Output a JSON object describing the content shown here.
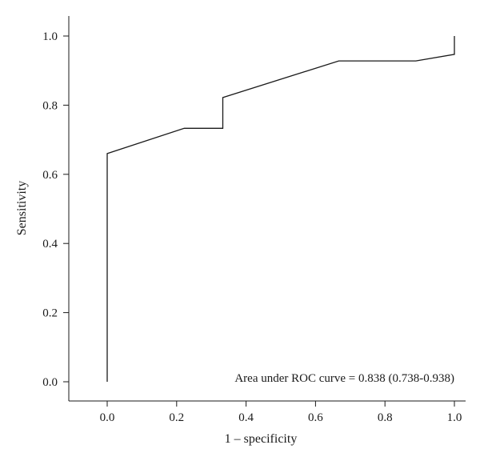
{
  "chart_data": {
    "type": "line",
    "title": "",
    "xlabel": "1 – specificity",
    "ylabel": "Sensitivity",
    "xlim": [
      -0.11,
      1.02
    ],
    "ylim": [
      -0.06,
      1.06
    ],
    "xticks": [
      0.0,
      0.2,
      0.4,
      0.6,
      0.8,
      1.0
    ],
    "xtick_labels": [
      "0.0",
      "0.2",
      "0.4",
      "0.6",
      "0.8",
      "1.0"
    ],
    "yticks": [
      0.0,
      0.2,
      0.4,
      0.6,
      0.8,
      1.0
    ],
    "ytick_labels": [
      "0.0",
      "0.2",
      "0.4",
      "0.6",
      "0.8",
      "1.0"
    ],
    "grid": false,
    "legend": "none",
    "line_color": "#1a1a1a",
    "annotation": "Area under ROC curve = 0.838 (0.738-0.938)",
    "series": [
      {
        "x": [
          0.0,
          0.0,
          0.222,
          0.333,
          0.333,
          0.667,
          0.889,
          1.0,
          1.0
        ],
        "y": [
          0.0,
          0.66,
          0.733,
          0.733,
          0.822,
          0.928,
          0.928,
          0.947,
          1.0
        ]
      }
    ]
  }
}
